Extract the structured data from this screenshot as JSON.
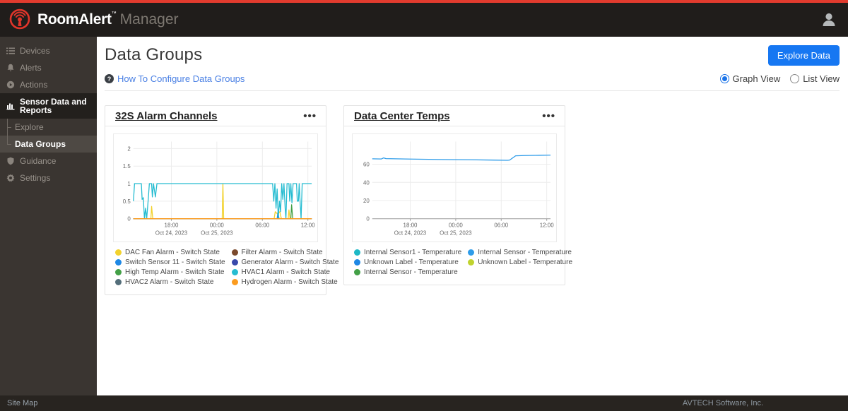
{
  "app": {
    "brand_bold": "RoomAlert",
    "brand_tm": "™",
    "brand_light": "Manager"
  },
  "sidebar": {
    "items": [
      {
        "label": "Devices",
        "icon": "list-icon"
      },
      {
        "label": "Alerts",
        "icon": "bell-icon"
      },
      {
        "label": "Actions",
        "icon": "play-circle-icon"
      },
      {
        "label": "Sensor Data and Reports",
        "icon": "chart-icon",
        "active": true
      },
      {
        "label": "Explore",
        "sub": true
      },
      {
        "label": "Data Groups",
        "sub": true,
        "selected": true
      },
      {
        "label": "Guidance",
        "icon": "shield-icon"
      },
      {
        "label": "Settings",
        "icon": "gear-icon"
      }
    ]
  },
  "page": {
    "title": "Data Groups",
    "help_link": "How To Configure Data Groups",
    "explore_button": "Explore Data",
    "view_toggle": {
      "graph": "Graph View",
      "list": "List View",
      "selected": "Graph View"
    },
    "card_menu_glyph": "•••"
  },
  "footer": {
    "left": "Site Map",
    "right": "AVTECH Software, Inc."
  },
  "colors": {
    "accent_red": "#e23b2e",
    "button_blue": "#1677f2",
    "link_blue": "#4a80e4",
    "radio_blue": "#1a73e8"
  },
  "chart_data": [
    {
      "type": "line",
      "title": "32S Alarm Channels",
      "x_start": "Oct 24, 2023 13:00",
      "x_hours_range": [
        0,
        23.5
      ],
      "ylim": [
        0,
        2.2
      ],
      "yticks": [
        0,
        0.5,
        1,
        1.5,
        2
      ],
      "xticks": [
        {
          "h": 5,
          "label": "18:00",
          "date": "Oct 24, 2023"
        },
        {
          "h": 11,
          "label": "00:00",
          "date": "Oct 25, 2023"
        },
        {
          "h": 17,
          "label": "06:00"
        },
        {
          "h": 23,
          "label": "12:00"
        }
      ],
      "grid": true,
      "legend_position": "bottom",
      "series": [
        {
          "name": "DAC Fan Alarm - Switch State",
          "color": "#f2d22e",
          "points": [
            [
              0,
              0
            ],
            [
              2.3,
              0
            ],
            [
              2.4,
              0.35
            ],
            [
              2.55,
              0
            ],
            [
              11.7,
              0
            ],
            [
              11.8,
              1
            ],
            [
              11.9,
              0
            ],
            [
              18.55,
              0
            ],
            [
              18.7,
              0.2
            ],
            [
              19.0,
              0.13
            ],
            [
              19.3,
              0.2
            ],
            [
              19.5,
              0
            ],
            [
              20.4,
              0
            ],
            [
              20.5,
              0.25
            ],
            [
              20.65,
              0
            ],
            [
              23.5,
              0
            ]
          ]
        },
        {
          "name": "Filter Alarm - Switch State",
          "color": "#7b4a2d",
          "points": [
            [
              0,
              0
            ],
            [
              23.5,
              0
            ]
          ]
        },
        {
          "name": "Switch Sensor 11 - Switch State",
          "color": "#1e88e5",
          "points": [
            [
              0,
              0
            ],
            [
              18.95,
              0
            ],
            [
              19.05,
              0.18
            ],
            [
              19.2,
              0
            ],
            [
              23.5,
              0
            ]
          ]
        },
        {
          "name": "Generator Alarm - Switch State",
          "color": "#3949ab",
          "points": [
            [
              0,
              0
            ],
            [
              23.5,
              0
            ]
          ]
        },
        {
          "name": "High Temp Alarm - Switch State",
          "color": "#43a047",
          "points": [
            [
              0,
              0
            ],
            [
              20.75,
              0
            ],
            [
              20.85,
              0.4
            ],
            [
              21.0,
              0
            ],
            [
              23.5,
              0
            ]
          ]
        },
        {
          "name": "HVAC1 Alarm - Switch State",
          "color": "#26bcd1",
          "points": [
            [
              0,
              0.5
            ],
            [
              0.15,
              1
            ],
            [
              1.05,
              1
            ],
            [
              1.15,
              0.55
            ],
            [
              1.3,
              0.6
            ],
            [
              1.45,
              0
            ],
            [
              1.6,
              0.3
            ],
            [
              1.75,
              0
            ],
            [
              1.95,
              0.55
            ],
            [
              2.1,
              1
            ],
            [
              2.4,
              1
            ],
            [
              2.5,
              0.62
            ],
            [
              2.65,
              1
            ],
            [
              2.9,
              0.62
            ],
            [
              3.1,
              1
            ],
            [
              18.35,
              1
            ],
            [
              18.5,
              0.5
            ],
            [
              18.65,
              1
            ],
            [
              18.8,
              0.3
            ],
            [
              18.95,
              0.85
            ],
            [
              19.1,
              0
            ],
            [
              19.25,
              0.5
            ],
            [
              19.4,
              0.2
            ],
            [
              19.55,
              1
            ],
            [
              19.7,
              0.55
            ],
            [
              19.85,
              1
            ],
            [
              20.0,
              0.3
            ],
            [
              20.1,
              0
            ],
            [
              20.25,
              1
            ],
            [
              20.5,
              1
            ],
            [
              20.6,
              0.5
            ],
            [
              20.75,
              1
            ],
            [
              20.9,
              0.45
            ],
            [
              21.05,
              1
            ],
            [
              21.5,
              1
            ],
            [
              21.6,
              0.5
            ],
            [
              21.75,
              0.5
            ],
            [
              21.85,
              1
            ],
            [
              21.95,
              0.6
            ],
            [
              22.1,
              0
            ],
            [
              22.25,
              1
            ],
            [
              23.5,
              1
            ]
          ]
        },
        {
          "name": "HVAC2 Alarm - Switch State",
          "color": "#546e7a",
          "points": [
            [
              0,
              0
            ],
            [
              23.5,
              0
            ]
          ]
        },
        {
          "name": "Hydrogen Alarm - Switch State",
          "color": "#fb9b1e",
          "points": [
            [
              0,
              0
            ],
            [
              23.5,
              0
            ]
          ]
        }
      ]
    },
    {
      "type": "line",
      "title": "Data Center Temps",
      "x_start": "Oct 24, 2023 13:00",
      "x_hours_range": [
        0,
        23.5
      ],
      "ylim": [
        0,
        85
      ],
      "yticks": [
        0,
        20,
        40,
        60
      ],
      "xticks": [
        {
          "h": 5,
          "label": "18:00",
          "date": "Oct 24, 2023"
        },
        {
          "h": 11,
          "label": "00:00",
          "date": "Oct 25, 2023"
        },
        {
          "h": 17,
          "label": "06:00"
        },
        {
          "h": 23,
          "label": "12:00"
        }
      ],
      "grid": true,
      "legend_position": "bottom",
      "series": [
        {
          "name": "Internal Sensor1 - Temperature",
          "color": "#1db8c6",
          "points": []
        },
        {
          "name": "Internal Sensor - Temperature",
          "color": "#2e9ce9",
          "points": [
            [
              0,
              66
            ],
            [
              1.2,
              65.8
            ],
            [
              1.5,
              67
            ],
            [
              1.8,
              66.2
            ],
            [
              5,
              65.7
            ],
            [
              9,
              65.2
            ],
            [
              13,
              64.9
            ],
            [
              16,
              64.6
            ],
            [
              17.8,
              64.4
            ],
            [
              18.1,
              64.5
            ],
            [
              18.9,
              69.3
            ],
            [
              20,
              69.6
            ],
            [
              21.5,
              69.8
            ],
            [
              23.5,
              70.1
            ]
          ]
        },
        {
          "name": "Unknown Label - Temperature",
          "color": "#1e88e5",
          "points": []
        },
        {
          "name": "Unknown Label - Temperature",
          "color": "#c0d32f",
          "points": []
        },
        {
          "name": "Internal Sensor - Temperature",
          "color": "#43a047",
          "points": []
        }
      ]
    }
  ]
}
